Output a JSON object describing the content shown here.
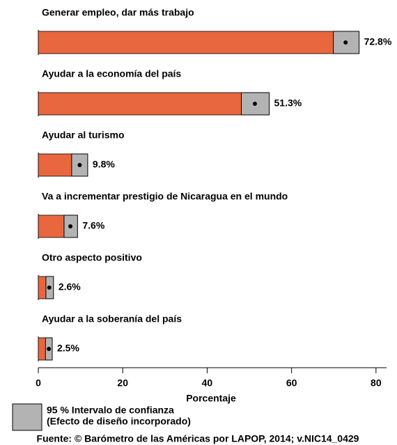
{
  "chart_data": {
    "type": "bar",
    "orientation": "horizontal",
    "categories": [
      "Generar empleo, dar más trabajo",
      "Ayudar a la economía del país",
      "Ayudar al turismo",
      "Va a incrementar prestigio de Nicaragua en el mundo",
      "Otro aspecto positivo",
      "Ayudar a la soberanía del país"
    ],
    "values": [
      72.8,
      51.3,
      9.8,
      7.6,
      2.6,
      2.5
    ],
    "value_labels": [
      "72.8%",
      "51.3%",
      "9.8%",
      "7.6%",
      "2.6%",
      "2.5%"
    ],
    "ci_lower": [
      69.9,
      48.1,
      7.9,
      6.1,
      1.8,
      1.7
    ],
    "ci_upper": [
      76.0,
      54.7,
      11.7,
      9.3,
      3.6,
      3.3
    ],
    "color": "#e8673f",
    "ci_color": "#b3b3b3",
    "xlim": [
      0,
      82.5
    ],
    "xticks": [
      0,
      20,
      40,
      60,
      80
    ],
    "xlabel": "Porcentaje",
    "legend": [
      "95 % Intervalo de confianza",
      "(Efecto de diseño incorporado)"
    ],
    "source": "Fuente: © Barómetro de las Américas por LAPOP, 2014; v.NIC14_0429"
  }
}
